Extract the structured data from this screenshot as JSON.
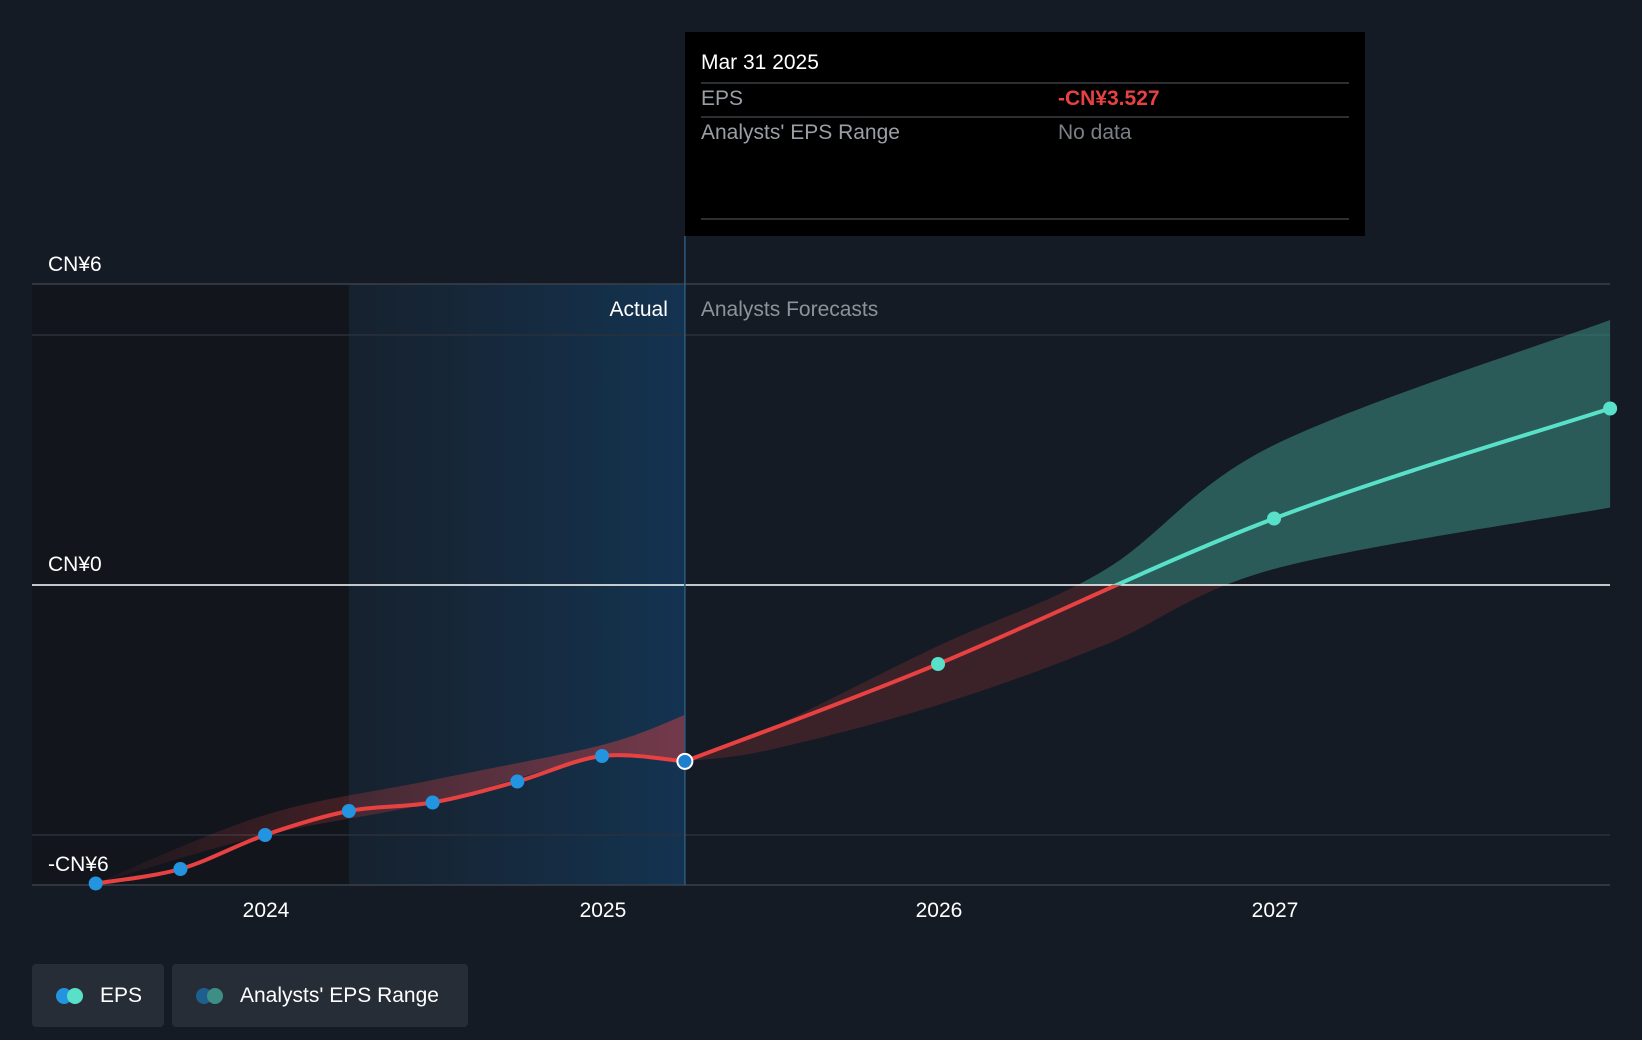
{
  "chart_data": {
    "type": "line",
    "y_axis": {
      "min": -6,
      "max": 6,
      "tick_labels": [
        "CN¥6",
        "CN¥0",
        "-CN¥6"
      ],
      "ticks": [
        6,
        0,
        -6
      ]
    },
    "x_axis": {
      "tick_labels": [
        "2024",
        "2025",
        "2026",
        "2027"
      ],
      "ticks": [
        "2024-01-01",
        "2025-01-01",
        "2026-01-01",
        "2027-01-01"
      ]
    },
    "zero_line": true,
    "regions": {
      "actual_label": "Actual",
      "forecast_label": "Analysts Forecasts",
      "divider_date": "2025-03-31"
    },
    "series": [
      {
        "name": "EPS",
        "kind": "actual",
        "color": "#e84142",
        "marker_color": "#2394df",
        "points": [
          {
            "x": "2023-06-30",
            "y": -5.97
          },
          {
            "x": "2023-09-30",
            "y": -5.68
          },
          {
            "x": "2023-12-31",
            "y": -5.0
          },
          {
            "x": "2024-03-31",
            "y": -4.52
          },
          {
            "x": "2024-06-30",
            "y": -4.35
          },
          {
            "x": "2024-09-30",
            "y": -3.93
          },
          {
            "x": "2024-12-31",
            "y": -3.42
          },
          {
            "x": "2025-03-31",
            "y": -3.527
          }
        ]
      },
      {
        "name": "EPS",
        "kind": "forecast",
        "color_negative": "#e84142",
        "color_positive": "#58e1c8",
        "marker_color": "#58e1c8",
        "points": [
          {
            "x": "2025-03-31",
            "y": -3.527
          },
          {
            "x": "2025-12-31",
            "y": -1.58
          },
          {
            "x": "2026-12-31",
            "y": 1.33
          },
          {
            "x": "2027-12-31",
            "y": 3.53
          }
        ]
      }
    ],
    "eps_range": {
      "name": "Analysts' EPS Range",
      "forecast": [
        {
          "x": "2025-03-31",
          "low": -3.527,
          "high": -3.527
        },
        {
          "x": "2025-06-30",
          "low": -3.3,
          "high": -2.88
        },
        {
          "x": "2025-12-31",
          "low": -2.4,
          "high": -1.22
        },
        {
          "x": "2026-06-30",
          "low": -1.2,
          "high": 0.3
        },
        {
          "x": "2026-12-31",
          "low": 0.32,
          "high": 2.8
        },
        {
          "x": "2027-12-31",
          "low": 1.55,
          "high": 5.3
        }
      ],
      "actual": [
        {
          "x": "2023-06-30",
          "low": -5.97,
          "high": -5.97
        },
        {
          "x": "2023-12-31",
          "low": -5.0,
          "high": -4.6
        },
        {
          "x": "2024-06-30",
          "low": -4.35,
          "high": -3.9
        },
        {
          "x": "2024-12-31",
          "low": -3.42,
          "high": -3.2
        },
        {
          "x": "2025-03-31",
          "low": -3.527,
          "high": -2.6
        }
      ]
    },
    "tooltip": {
      "date": "Mar 31 2025",
      "rows": [
        {
          "label": "EPS",
          "value": "-CN¥3.527",
          "value_color": "#e84142"
        },
        {
          "label": "Analysts' EPS Range",
          "value": "No data",
          "value_color": "#7b7f86"
        }
      ]
    },
    "legend": [
      {
        "label": "EPS",
        "dot_colors": [
          "#2394df",
          "#58e1c8"
        ]
      },
      {
        "label": "Analysts' EPS Range",
        "dot_colors": [
          "#1f5f8f",
          "#3d8f85"
        ]
      }
    ]
  }
}
